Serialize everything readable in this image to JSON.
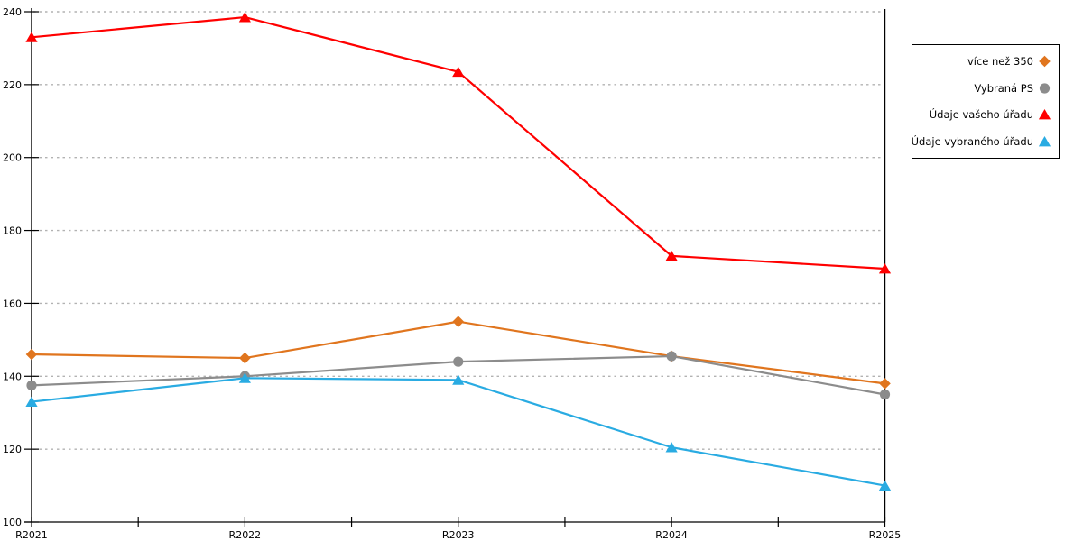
{
  "chart_data": {
    "type": "line",
    "title": "",
    "xlabel": "",
    "ylabel": "",
    "categories": [
      "R2021",
      "R2022",
      "R2023",
      "R2024",
      "R2025"
    ],
    "series": [
      {
        "name": "více než 350",
        "color": "#E0751E",
        "marker": "diamond",
        "values": [
          146,
          145,
          155,
          145.5,
          138
        ]
      },
      {
        "name": "Vybraná PS",
        "color": "#8C8C8C",
        "marker": "circle",
        "values": [
          137.5,
          140,
          144,
          145.5,
          135
        ]
      },
      {
        "name": "Údaje vašeho úřadu",
        "color": "#FF0000",
        "marker": "triangle",
        "values": [
          233,
          238.5,
          223.5,
          173,
          169.5
        ]
      },
      {
        "name": "Údaje vybraného úřadu",
        "color": "#29ABE2",
        "marker": "triangle",
        "values": [
          133,
          139.5,
          139,
          120.5,
          110
        ]
      }
    ],
    "ylim": [
      100,
      240
    ],
    "yticks": [
      100,
      120,
      140,
      160,
      180,
      200,
      220,
      240
    ],
    "grid": "horizontal-dashed",
    "gridline_color": "#b2b2b2",
    "axis_color": "#000000",
    "legend_position": "outside-top-right"
  }
}
